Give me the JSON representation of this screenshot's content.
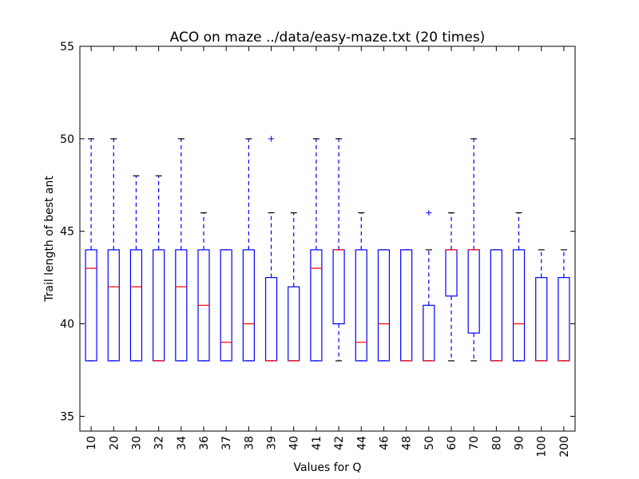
{
  "chart_data": {
    "type": "box",
    "title": "ACO on maze ../data/easy-maze.txt (20 times)",
    "xlabel": "Values for Q",
    "ylabel": "Trail length of best ant",
    "ylim": [
      34.2,
      55
    ],
    "yticks": [
      35,
      40,
      45,
      50,
      55
    ],
    "grid": false,
    "colors": {
      "box": "#0000ff",
      "median": "#ff0000",
      "frame": "#000000"
    },
    "categories": [
      "10",
      "20",
      "30",
      "32",
      "34",
      "36",
      "37",
      "38",
      "39",
      "40",
      "41",
      "42",
      "44",
      "46",
      "48",
      "50",
      "60",
      "70",
      "80",
      "90",
      "100",
      "200"
    ],
    "boxes": [
      {
        "q1": 38,
        "median": 43,
        "q3": 44,
        "whisker_low": 38,
        "whisker_high": 50,
        "outliers": []
      },
      {
        "q1": 38,
        "median": 42,
        "q3": 44,
        "whisker_low": 38,
        "whisker_high": 50,
        "outliers": []
      },
      {
        "q1": 38,
        "median": 42,
        "q3": 44,
        "whisker_low": 38,
        "whisker_high": 48,
        "outliers": []
      },
      {
        "q1": 38,
        "median": 38,
        "q3": 44,
        "whisker_low": 38,
        "whisker_high": 48,
        "outliers": []
      },
      {
        "q1": 38,
        "median": 42,
        "q3": 44,
        "whisker_low": 38,
        "whisker_high": 50,
        "outliers": []
      },
      {
        "q1": 38,
        "median": 41,
        "q3": 44,
        "whisker_low": 38,
        "whisker_high": 46,
        "outliers": []
      },
      {
        "q1": 38,
        "median": 39,
        "q3": 44,
        "whisker_low": 38,
        "whisker_high": 44,
        "outliers": []
      },
      {
        "q1": 38,
        "median": 40,
        "q3": 44,
        "whisker_low": 38,
        "whisker_high": 50,
        "outliers": []
      },
      {
        "q1": 38,
        "median": 38,
        "q3": 42.5,
        "whisker_low": 38,
        "whisker_high": 46,
        "outliers": [
          50
        ]
      },
      {
        "q1": 38,
        "median": 38,
        "q3": 42,
        "whisker_low": 38,
        "whisker_high": 46,
        "outliers": []
      },
      {
        "q1": 38,
        "median": 43,
        "q3": 44,
        "whisker_low": 38,
        "whisker_high": 50,
        "outliers": []
      },
      {
        "q1": 40,
        "median": 44,
        "q3": 44,
        "whisker_low": 38,
        "whisker_high": 50,
        "outliers": []
      },
      {
        "q1": 38,
        "median": 39,
        "q3": 44,
        "whisker_low": 38,
        "whisker_high": 46,
        "outliers": []
      },
      {
        "q1": 38,
        "median": 40,
        "q3": 44,
        "whisker_low": 38,
        "whisker_high": 44,
        "outliers": []
      },
      {
        "q1": 38,
        "median": 38,
        "q3": 44,
        "whisker_low": 38,
        "whisker_high": 44,
        "outliers": []
      },
      {
        "q1": 38,
        "median": 38,
        "q3": 41,
        "whisker_low": 38,
        "whisker_high": 44,
        "outliers": [
          46
        ]
      },
      {
        "q1": 41.5,
        "median": 44,
        "q3": 44,
        "whisker_low": 38,
        "whisker_high": 46,
        "outliers": []
      },
      {
        "q1": 39.5,
        "median": 44,
        "q3": 44,
        "whisker_low": 38,
        "whisker_high": 50,
        "outliers": []
      },
      {
        "q1": 38,
        "median": 38,
        "q3": 44,
        "whisker_low": 38,
        "whisker_high": 44,
        "outliers": []
      },
      {
        "q1": 38,
        "median": 40,
        "q3": 44,
        "whisker_low": 38,
        "whisker_high": 46,
        "outliers": []
      },
      {
        "q1": 38,
        "median": 38,
        "q3": 42.5,
        "whisker_low": 38,
        "whisker_high": 44,
        "outliers": []
      },
      {
        "q1": 38,
        "median": 38,
        "q3": 42.5,
        "whisker_low": 38,
        "whisker_high": 44,
        "outliers": []
      }
    ]
  }
}
